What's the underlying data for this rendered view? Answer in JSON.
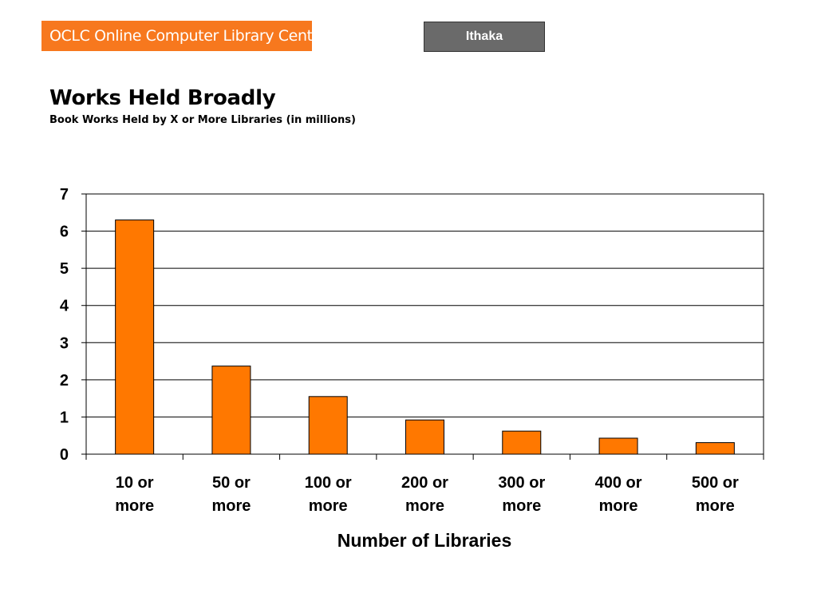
{
  "header": {
    "brand_label": "OCLC Online Computer Library Center",
    "partner_label": "Ithaka"
  },
  "colors": {
    "brand": "#f7781e",
    "partner": "#6a6a6a",
    "bar": "#ff7800",
    "bar_stroke": "#000000"
  },
  "chart_data": {
    "type": "bar",
    "title": "Works Held Broadly",
    "subtitle": "Book Works Held by X or More Libraries (in millions)",
    "categories": [
      "10 or more",
      "50 or more",
      "100 or more",
      "200 or more",
      "300 or more",
      "400 or more",
      "500 or more"
    ],
    "category_lines": [
      [
        "10 or",
        "more"
      ],
      [
        "50 or",
        "more"
      ],
      [
        "100 or",
        "more"
      ],
      [
        "200 or",
        "more"
      ],
      [
        "300 or",
        "more"
      ],
      [
        "400 or",
        "more"
      ],
      [
        "500 or",
        "more"
      ]
    ],
    "values": [
      6.3,
      2.37,
      1.55,
      0.92,
      0.62,
      0.43,
      0.31
    ],
    "xlabel": "Number of Libraries",
    "ylabel": "",
    "ylim": [
      0,
      7
    ],
    "yticks": [
      0,
      1,
      2,
      3,
      4,
      5,
      6,
      7
    ],
    "grid": true,
    "legend": "none"
  }
}
